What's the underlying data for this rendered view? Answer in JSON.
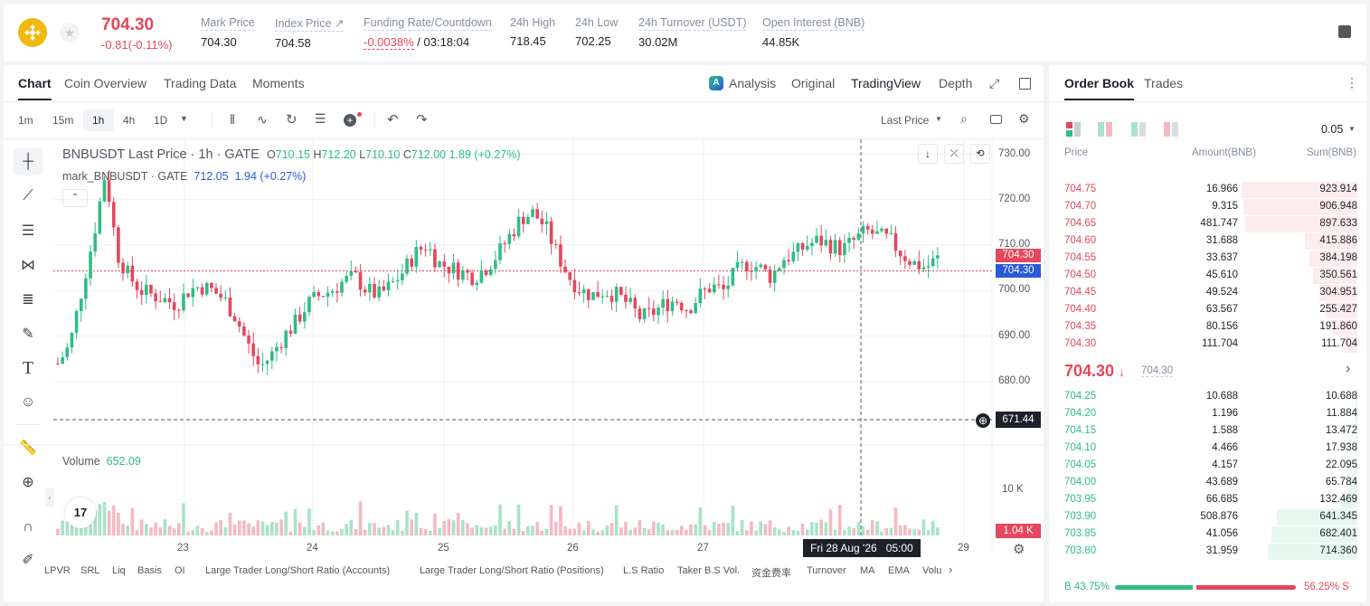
{
  "ticker": {
    "price": "704.30",
    "change": "-0.81(-0.11%)",
    "icon": "bnb-coin-icon"
  },
  "stats": [
    {
      "label": "Mark Price",
      "value": "704.30"
    },
    {
      "label": "Index Price ↗",
      "value": "704.58"
    },
    {
      "label": "Funding Rate/Countdown",
      "value": "-0.0038%",
      "value2": "/ 03:18:04"
    },
    {
      "label": "24h High",
      "value": "718.45"
    },
    {
      "label": "24h Low",
      "value": "702.25"
    },
    {
      "label": "24h Turnover (USDT)",
      "value": "30.02M"
    },
    {
      "label": "Open Interest (BNB)",
      "value": "44.85K"
    }
  ],
  "chart_tabs": [
    "Chart",
    "Coin Overview",
    "Trading Data",
    "Moments"
  ],
  "view_tabs": [
    "Analysis",
    "Original",
    "TradingView",
    "Depth"
  ],
  "intervals": [
    "1m",
    "15m",
    "1h",
    "4h",
    "1D"
  ],
  "price_type": "Last Price",
  "legend": {
    "title": "BNBUSDT Last Price · 1h · GATE",
    "o": "710.15",
    "h": "712.20",
    "l": "710.10",
    "c": "712.00",
    "chg": "1.89 (+0.27%)",
    "mark": "mark_BNBUSDT · GATE",
    "mark_val": "712.05",
    "mark_chg": "1.94 (+0.27%)",
    "o_lbl": "O",
    "h_lbl": "H",
    "l_lbl": "L",
    "c_lbl": "C"
  },
  "volume": {
    "label": "Volume",
    "value": "652.09",
    "axis": "10 K",
    "last": "1.04 K"
  },
  "y_ticks": [
    "730.00",
    "720.00",
    "710.00",
    "700.00",
    "690.00",
    "680.00"
  ],
  "x_ticks": [
    "23",
    "24",
    "25",
    "26",
    "27",
    "29"
  ],
  "price_tags": {
    "last": "704.30",
    "mark": "704.30",
    "cursor": "671.44"
  },
  "crosshair_time": "Fri 28 Aug '26",
  "crosshair_hour": "05:00",
  "indicators": [
    "LPVR",
    "SRL",
    "Liq",
    "Basis",
    "OI",
    "Large Trader Long/Short Ratio (Accounts)",
    "Large Trader Long/Short Ratio (Positions)",
    "L.S Ratio",
    "Taker B.S Vol.",
    "资金费率",
    "Turnover",
    "MA",
    "EMA",
    "Volu"
  ],
  "orderbook": {
    "tabs": [
      "Order Book",
      "Trades"
    ],
    "precision": "0.05",
    "headers": [
      "Price",
      "Amount(BNB)",
      "Sum(BNB)"
    ],
    "asks": [
      [
        "704.75",
        "16.966",
        "923.914"
      ],
      [
        "704.70",
        "9.315",
        "906.948"
      ],
      [
        "704.65",
        "481.747",
        "897.633"
      ],
      [
        "704.60",
        "31.688",
        "415.886"
      ],
      [
        "704.55",
        "33.637",
        "384.198"
      ],
      [
        "704.50",
        "45.610",
        "350.561"
      ],
      [
        "704.45",
        "49.524",
        "304.951"
      ],
      [
        "704.40",
        "63.567",
        "255.427"
      ],
      [
        "704.35",
        "80.156",
        "191.860"
      ],
      [
        "704.30",
        "111.704",
        "111.704"
      ]
    ],
    "last": "704.30",
    "mark": "704.30",
    "bids": [
      [
        "704.25",
        "10.688",
        "10.688"
      ],
      [
        "704.20",
        "1.196",
        "11.884"
      ],
      [
        "704.15",
        "1.588",
        "13.472"
      ],
      [
        "704.10",
        "4.466",
        "17.938"
      ],
      [
        "704.05",
        "4.157",
        "22.095"
      ],
      [
        "704.00",
        "43.689",
        "65.784"
      ],
      [
        "703.95",
        "66.685",
        "132.469"
      ],
      [
        "703.90",
        "508.876",
        "641.345"
      ],
      [
        "703.85",
        "41.056",
        "682.401"
      ],
      [
        "703.80",
        "31.959",
        "714.360"
      ]
    ],
    "buy_ratio": "43.75%",
    "sell_ratio": "56.25%",
    "buy_lbl": "B",
    "sell_lbl": "S",
    "buy_frac": 0.4375
  },
  "colors": {
    "up": "#2ebd85",
    "down": "#e5475c",
    "accent": "#2a5bd7"
  }
}
